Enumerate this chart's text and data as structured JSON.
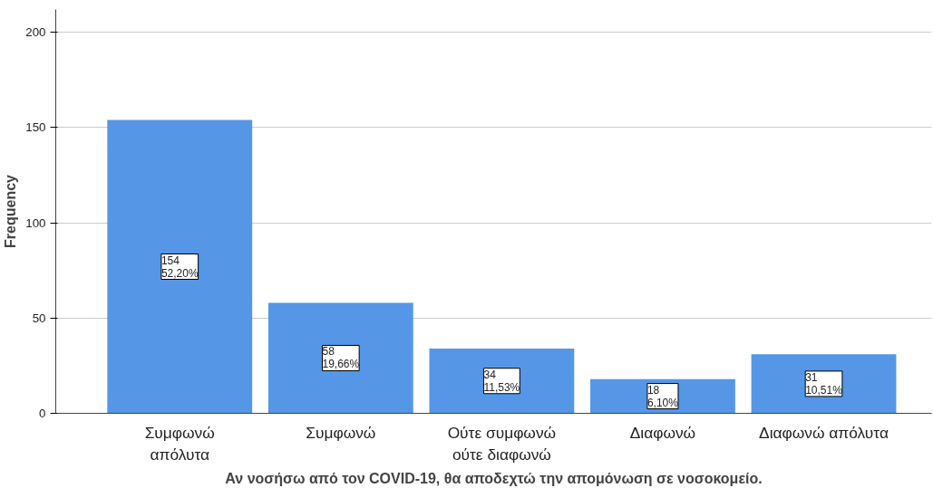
{
  "chart_data": {
    "type": "bar",
    "xlabel": "Αν νοσήσω από τον COVID-19, θα αποδεχτώ την απομόνωση σε νοσοκομείο.",
    "ylabel": "Frequency",
    "categories": [
      "Συμφωνώ\nαπόλυτα",
      "Συμφωνώ",
      "Ούτε συμφωνώ\nούτε διαφωνώ",
      "Διαφωνώ",
      "Διαφωνώ απόλυτα"
    ],
    "values": [
      154,
      58,
      34,
      18,
      31
    ],
    "value_labels": [
      "154\n52,20%",
      "58\n19,66%",
      "34\n11,53%",
      "18\n6,10%",
      "31\n10,51%"
    ],
    "color": "#5596e6",
    "ylim": [
      0,
      212
    ],
    "yticks": [
      0,
      50,
      100,
      150,
      200
    ],
    "grid": "y"
  }
}
